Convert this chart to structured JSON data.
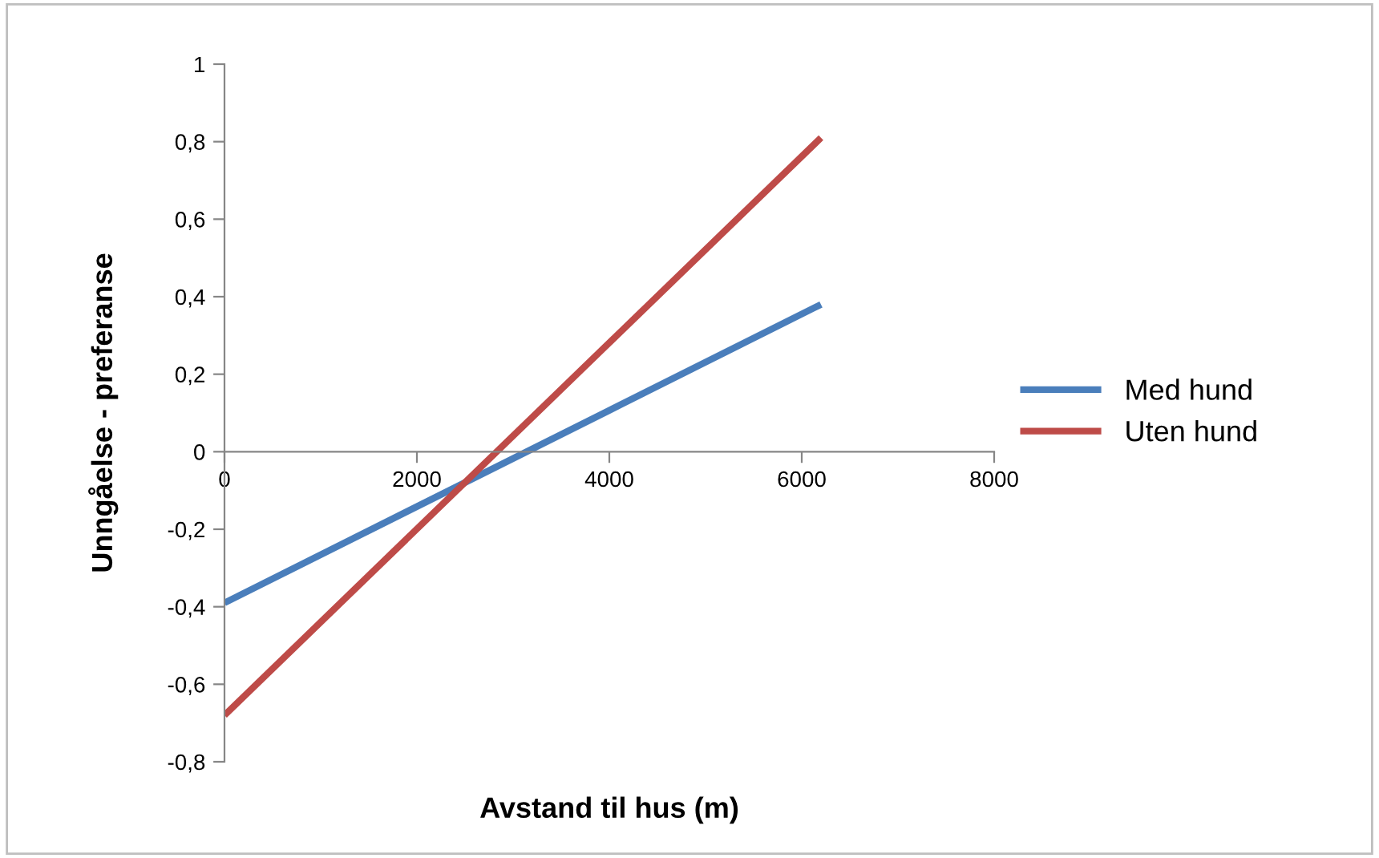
{
  "chart_data": {
    "type": "line",
    "xlabel": "Avstand til hus (m)",
    "ylabel": "Unngåelse - preferanse",
    "x": [
      0,
      6200
    ],
    "series": [
      {
        "name": "Med hund",
        "color": "#4a7ebb",
        "values": [
          -0.39,
          0.38
        ]
      },
      {
        "name": "Uten hund",
        "color": "#be4b48",
        "values": [
          -0.68,
          0.81
        ]
      }
    ],
    "xlim": [
      0,
      8000
    ],
    "xticks": [
      0,
      2000,
      4000,
      6000,
      8000
    ],
    "ylim": [
      -0.8,
      1
    ],
    "yticks": [
      {
        "value": -0.8,
        "label": "-0,8"
      },
      {
        "value": -0.6,
        "label": "-0,6"
      },
      {
        "value": -0.4,
        "label": "-0,4"
      },
      {
        "value": -0.2,
        "label": "-0,2"
      },
      0,
      {
        "value": 0.2,
        "label": "0,2"
      },
      {
        "value": 0.4,
        "label": "0,4"
      },
      {
        "value": 0.6,
        "label": "0,6"
      },
      {
        "value": 0.8,
        "label": "0,8"
      },
      1
    ],
    "grid": false,
    "legend": "right",
    "marker": "none",
    "line_style": "solid"
  }
}
